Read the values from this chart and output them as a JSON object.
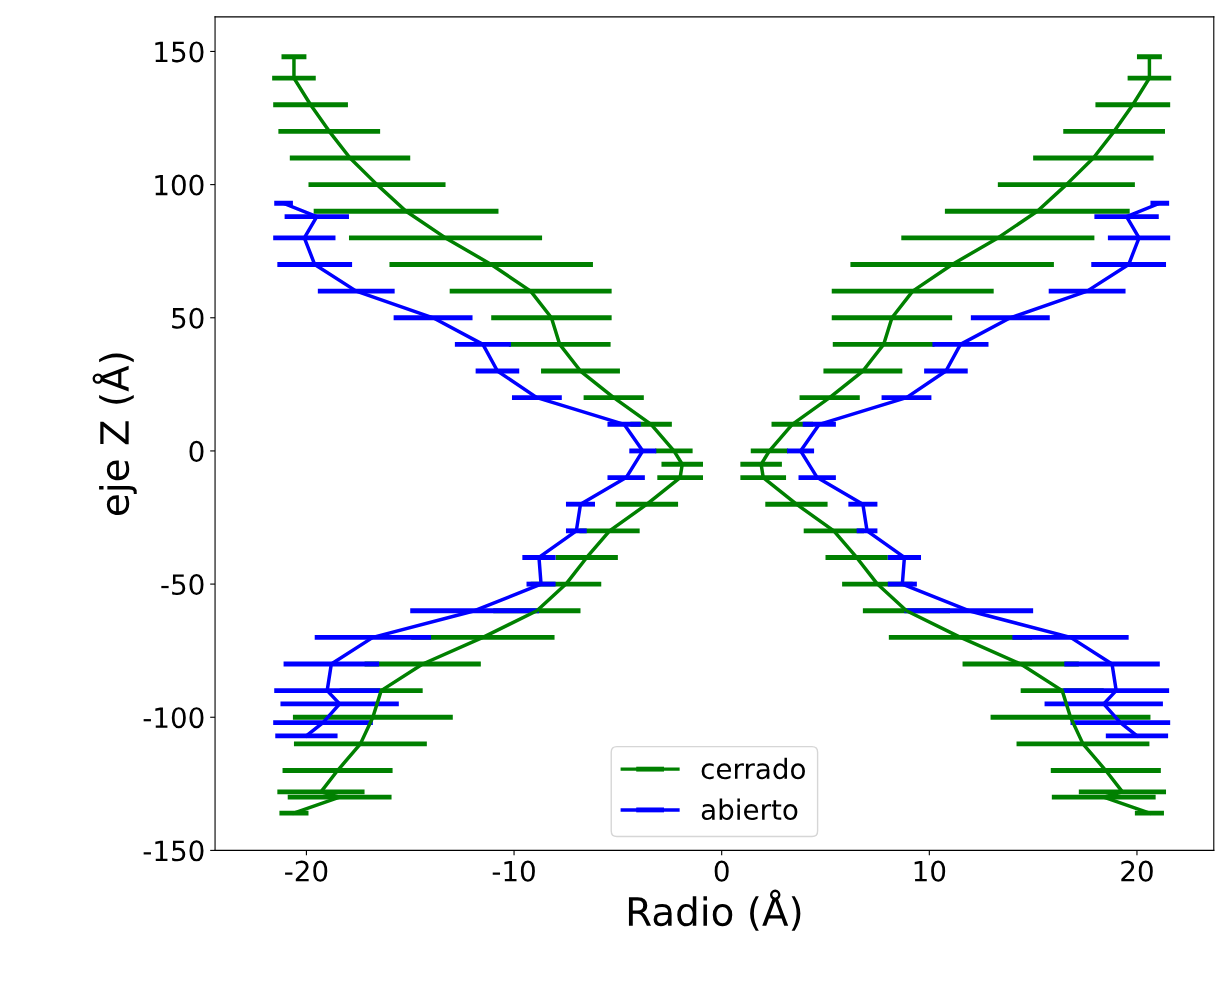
{
  "chart_data": {
    "type": "line",
    "xlabel": "Radio (Å)",
    "ylabel": "eje Z (Å)",
    "xlim": [
      -24.4,
      23.7
    ],
    "xticks": [
      -20,
      -10,
      0,
      10,
      20
    ],
    "ylim": [
      -150,
      163
    ],
    "yticks": [
      -150,
      -100,
      -50,
      0,
      50,
      100,
      150
    ],
    "grid": false,
    "legend": "bottom",
    "marker": "none",
    "line_style": "solid",
    "series": [
      {
        "name": "cerrado",
        "color": "#008000",
        "x": [
          20.6,
          20.6,
          19.8,
          18.9,
          17.9,
          16.6,
          15.2,
          13.3,
          11.1,
          9.2,
          8.2,
          7.8,
          6.8,
          5.2,
          3.4,
          2.3,
          1.9,
          2.0,
          3.6,
          5.4,
          6.5,
          7.5,
          8.9,
          11.5,
          14.4,
          16.4,
          16.8,
          17.4,
          18.5,
          19.3,
          18.4,
          20.6
        ],
        "values": [
          148,
          140,
          130,
          120,
          110,
          100,
          90,
          80,
          70,
          60,
          50,
          40,
          30,
          20,
          10,
          0,
          -5,
          -10,
          -20,
          -30,
          -40,
          -50,
          -60,
          -70,
          -80,
          -90,
          -100,
          -110,
          -120,
          -128,
          -130,
          -136
        ],
        "xerrors": [
          0.6,
          1.05,
          1.8,
          2.45,
          2.9,
          3.3,
          4.45,
          4.65,
          4.9,
          3.9,
          2.9,
          2.45,
          1.9,
          1.45,
          1.0,
          0.9,
          1.0,
          1.1,
          1.5,
          1.45,
          1.5,
          1.7,
          2.1,
          3.45,
          2.8,
          2.0,
          3.85,
          3.2,
          2.65,
          2.1,
          2.5,
          0.7
        ]
      },
      {
        "color": "#008000",
        "x": [
          -20.6,
          -20.6,
          -19.8,
          -18.9,
          -17.9,
          -16.6,
          -15.2,
          -13.3,
          -11.1,
          -9.2,
          -8.2,
          -7.8,
          -6.8,
          -5.2,
          -3.4,
          -2.3,
          -1.9,
          -2.0,
          -3.6,
          -5.4,
          -6.5,
          -7.5,
          -8.9,
          -11.5,
          -14.4,
          -16.4,
          -16.8,
          -17.4,
          -18.5,
          -19.3,
          -18.4,
          -20.6
        ],
        "values": [
          148,
          140,
          130,
          120,
          110,
          100,
          90,
          80,
          70,
          60,
          50,
          40,
          30,
          20,
          10,
          0,
          -5,
          -10,
          -20,
          -30,
          -40,
          -50,
          -60,
          -70,
          -80,
          -90,
          -100,
          -110,
          -120,
          -128,
          -130,
          -136
        ],
        "xerrors": [
          0.6,
          1.05,
          1.8,
          2.45,
          2.9,
          3.3,
          4.45,
          4.65,
          4.9,
          3.9,
          2.9,
          2.45,
          1.9,
          1.45,
          1.0,
          0.9,
          1.0,
          1.1,
          1.5,
          1.45,
          1.5,
          1.7,
          2.1,
          3.45,
          2.8,
          2.0,
          3.85,
          3.2,
          2.65,
          2.1,
          2.5,
          0.7
        ]
      },
      {
        "name": "abierto",
        "color": "#0000ff",
        "x": [
          21.1,
          19.5,
          20.1,
          19.6,
          17.6,
          13.9,
          11.5,
          10.8,
          8.9,
          4.7,
          3.8,
          4.6,
          6.8,
          7.0,
          8.8,
          8.7,
          11.9,
          16.8,
          18.8,
          19.0,
          18.4,
          19.2,
          20.0
        ],
        "values": [
          93,
          88,
          80,
          70,
          60,
          50,
          40,
          30,
          20,
          10,
          0,
          -10,
          -20,
          -30,
          -40,
          -50,
          -60,
          -70,
          -80,
          -90,
          -95,
          -102,
          -107
        ],
        "xerrors": [
          0.45,
          1.55,
          1.5,
          1.8,
          1.85,
          1.9,
          1.35,
          1.05,
          1.2,
          0.8,
          0.65,
          0.9,
          0.7,
          0.5,
          0.8,
          0.7,
          3.1,
          2.8,
          2.3,
          2.55,
          2.85,
          2.4,
          1.5
        ]
      },
      {
        "color": "#0000ff",
        "x": [
          -21.1,
          -19.5,
          -20.1,
          -19.6,
          -17.6,
          -13.9,
          -11.5,
          -10.8,
          -8.9,
          -4.7,
          -3.8,
          -4.6,
          -6.8,
          -7.0,
          -8.8,
          -8.7,
          -11.9,
          -16.8,
          -18.8,
          -19.0,
          -18.4,
          -19.2,
          -20.0
        ],
        "values": [
          93,
          88,
          80,
          70,
          60,
          50,
          40,
          30,
          20,
          10,
          0,
          -10,
          -20,
          -30,
          -40,
          -50,
          -60,
          -70,
          -80,
          -90,
          -95,
          -102,
          -107
        ],
        "xerrors": [
          0.45,
          1.55,
          1.5,
          1.8,
          1.85,
          1.9,
          1.35,
          1.05,
          1.2,
          0.8,
          0.65,
          0.9,
          0.7,
          0.5,
          0.8,
          0.7,
          3.1,
          2.8,
          2.3,
          2.55,
          2.85,
          2.4,
          1.5
        ]
      }
    ]
  }
}
